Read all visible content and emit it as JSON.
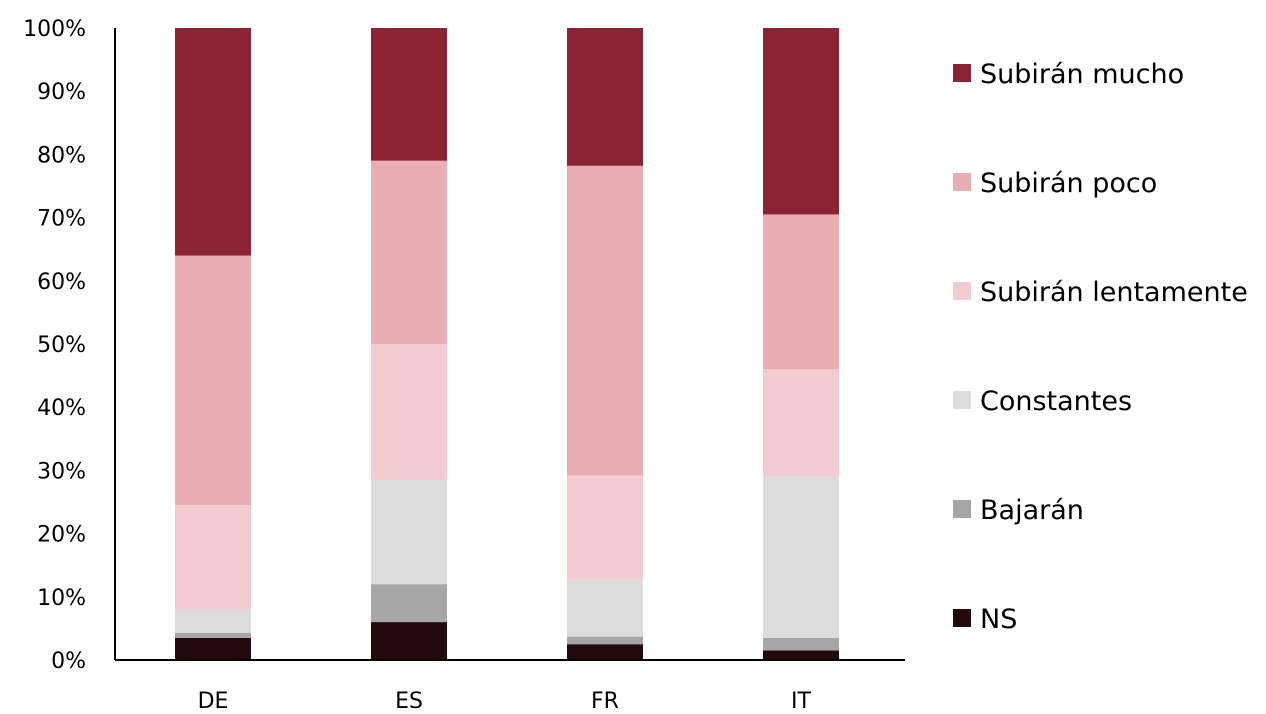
{
  "chart_data": {
    "type": "bar",
    "stacked": true,
    "normalized": true,
    "categories": [
      "DE",
      "ES",
      "FR",
      "IT"
    ],
    "series": [
      {
        "name": "NS",
        "color": "#230a0d",
        "values": [
          3.5,
          6.0,
          2.5,
          1.5
        ]
      },
      {
        "name": "Bajarán",
        "color": "#a6a6a6",
        "values": [
          0.8,
          6.0,
          1.2,
          2.0
        ]
      },
      {
        "name": "Constantes",
        "color": "#dcdcdc",
        "values": [
          3.7,
          16.5,
          9.0,
          25.5
        ]
      },
      {
        "name": "Subirán lentamente",
        "color": "#f2ccd1",
        "values": [
          16.5,
          21.5,
          16.5,
          17.0
        ]
      },
      {
        "name": "Subirán poco",
        "color": "#e9adb4",
        "values": [
          39.5,
          29.0,
          49.0,
          24.5
        ]
      },
      {
        "name": "Subirán mucho",
        "color": "#8b2332",
        "values": [
          36.0,
          21.0,
          21.8,
          29.5
        ]
      }
    ],
    "y_ticks": [
      "0%",
      "10%",
      "20%",
      "30%",
      "40%",
      "50%",
      "60%",
      "70%",
      "80%",
      "90%",
      "100%"
    ],
    "ylim": [
      0,
      100
    ],
    "title": "",
    "xlabel": "",
    "ylabel": "",
    "grid": false,
    "legend": {
      "position": "right",
      "order": [
        "Subirán mucho",
        "Subirán poco",
        "Subirán lentamente",
        "Constantes",
        "Bajarán",
        "NS"
      ]
    }
  }
}
